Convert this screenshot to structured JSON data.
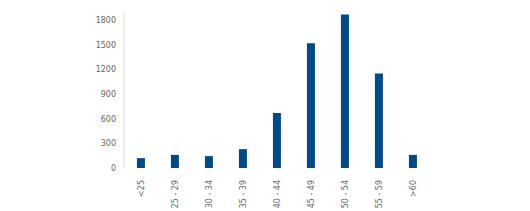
{
  "chart_data": {
    "type": "bar",
    "categories": [
      "<25",
      "25 - 29",
      "30 - 34",
      "35 - 39",
      "40 - 44",
      "45 - 49",
      "50 - 54",
      "55 - 59",
      ">60"
    ],
    "values": [
      120,
      160,
      145,
      230,
      670,
      1520,
      1870,
      1150,
      160
    ],
    "color": "#004a87",
    "ylim": [
      0,
      1900
    ],
    "yticks": [
      0,
      300,
      600,
      900,
      1200,
      1500,
      1800
    ],
    "grid": false
  }
}
